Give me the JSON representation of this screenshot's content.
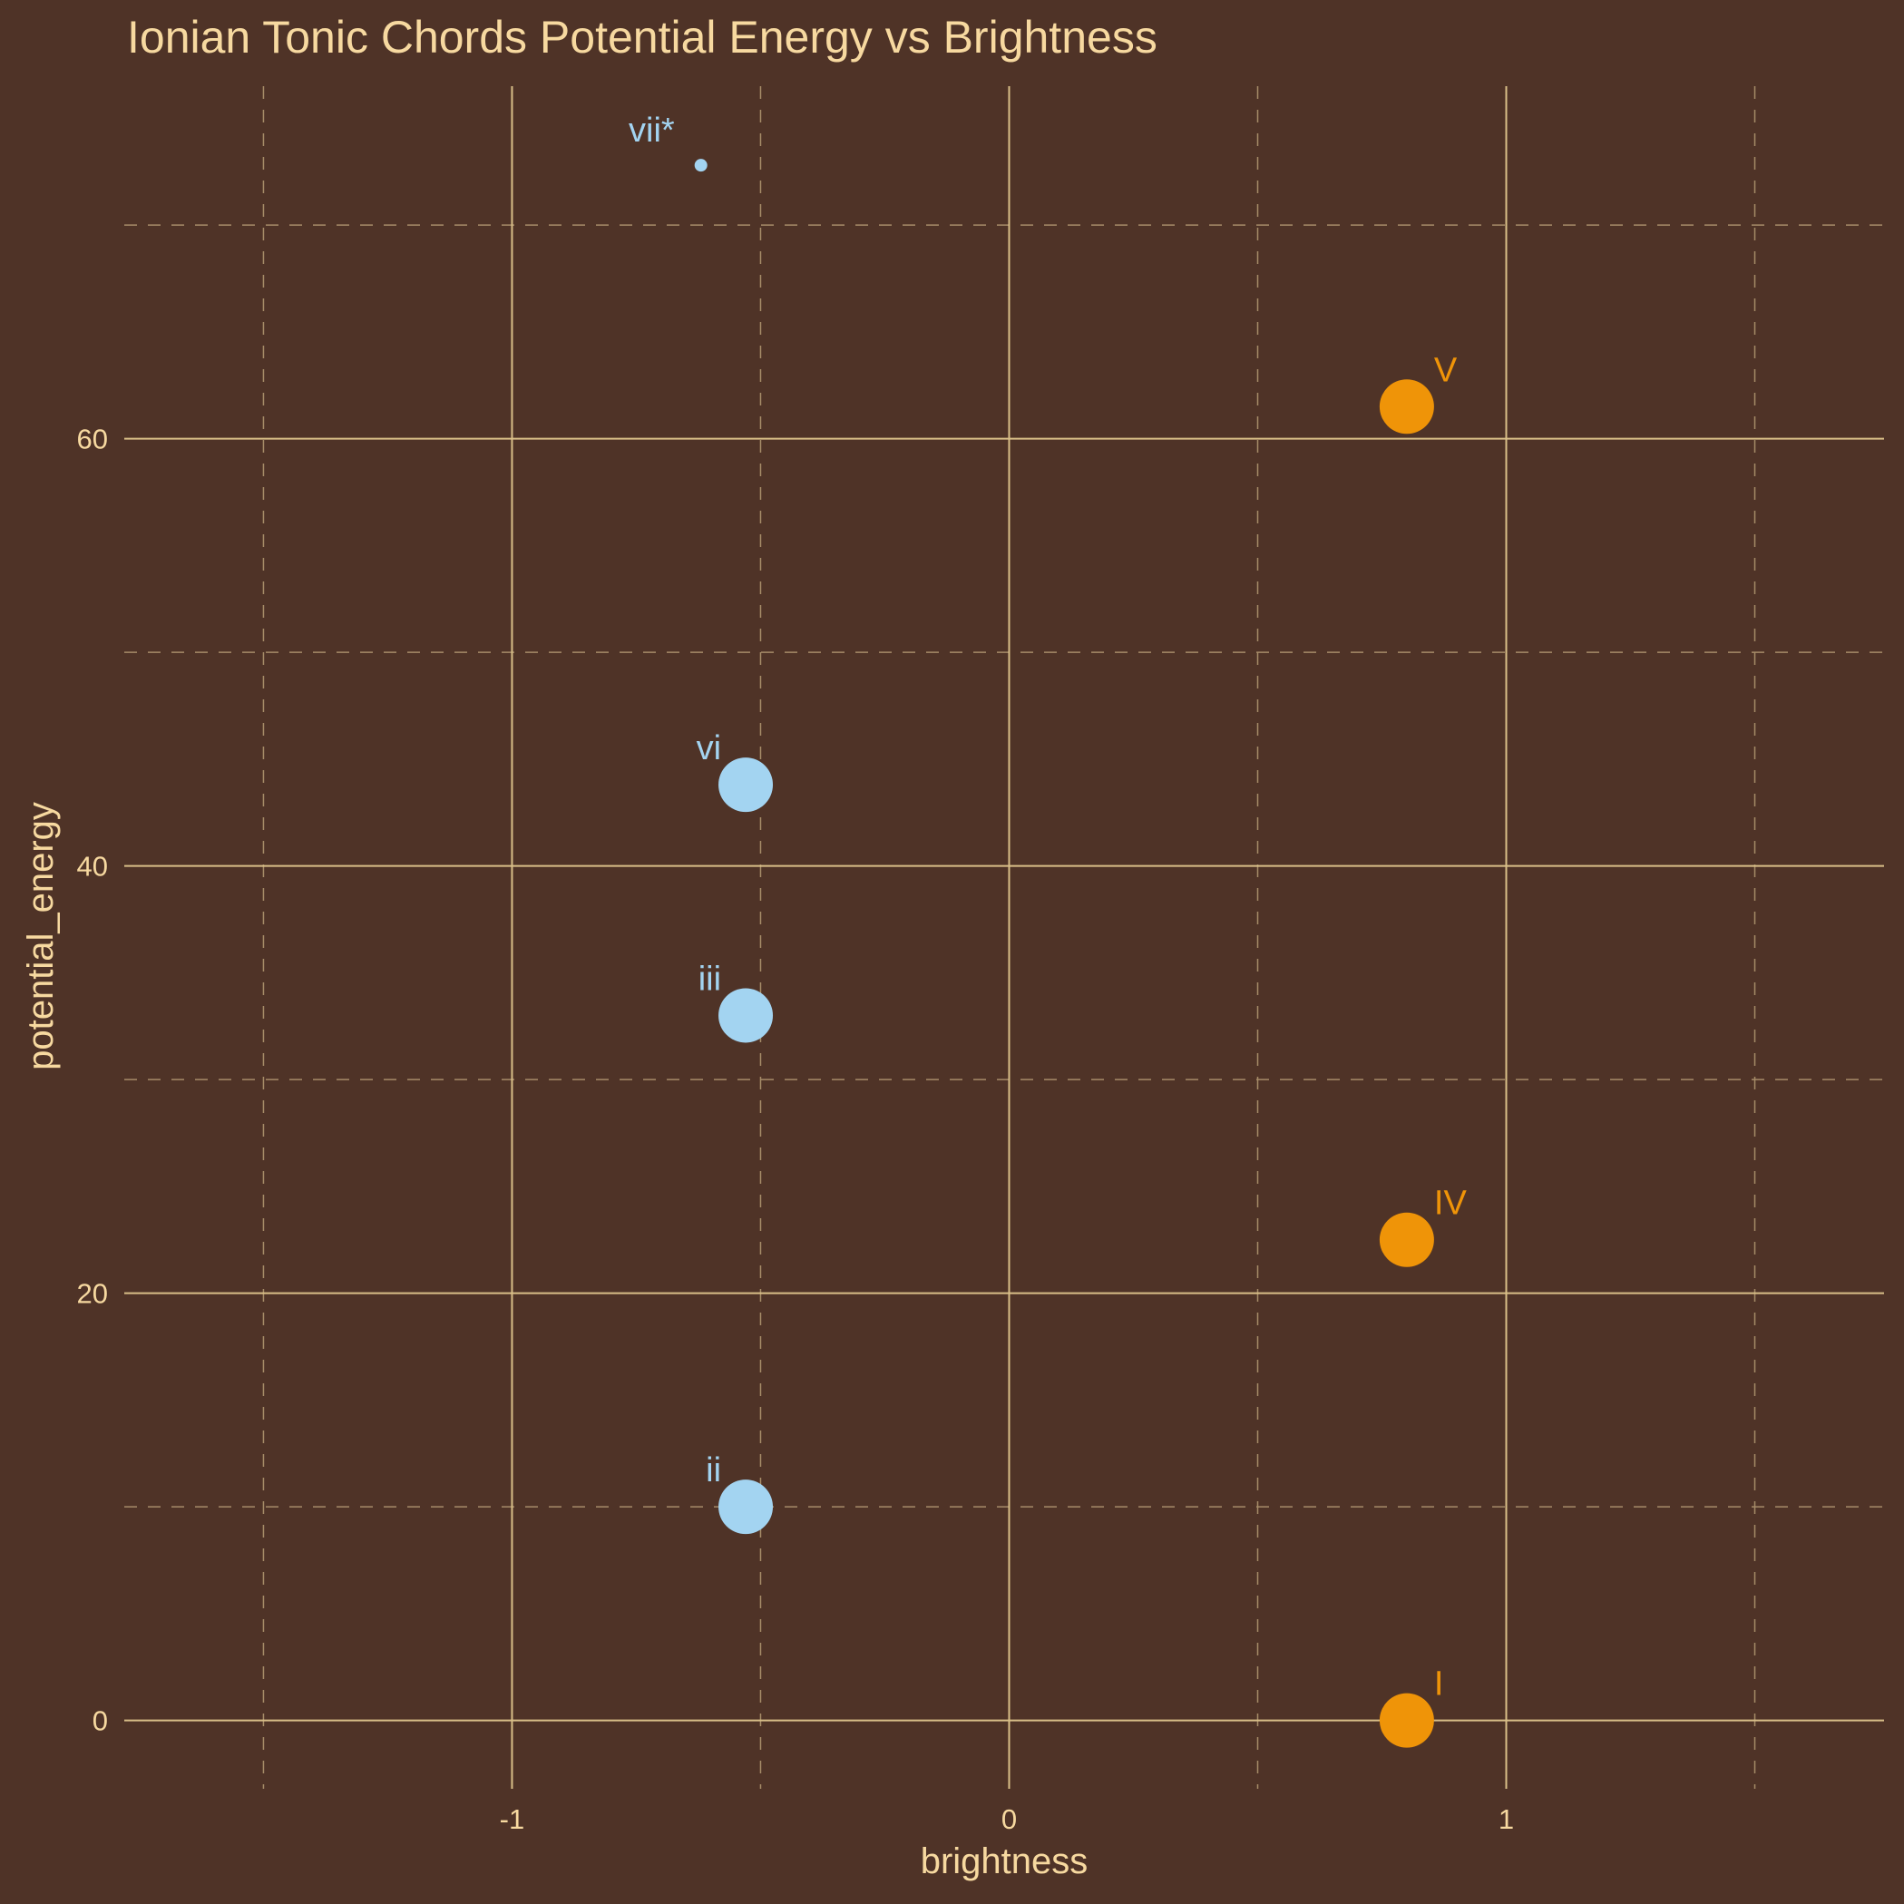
{
  "chart_data": {
    "type": "scatter",
    "title": "Ionian Tonic Chords Potential Energy vs Brightness",
    "xlabel": "brightness",
    "ylabel": "potential_energy",
    "xlim": [
      -1.78,
      1.76
    ],
    "ylim": [
      -3.2,
      76.5
    ],
    "x_major_ticks": [
      -1,
      0,
      1
    ],
    "x_minor_ticks": [
      -1.5,
      -0.5,
      0.5,
      1.5
    ],
    "y_major_ticks": [
      0,
      20,
      40,
      60
    ],
    "y_minor_ticks": [
      10,
      30,
      50,
      70
    ],
    "x_tick_labels": [
      "-1",
      "0",
      "1"
    ],
    "y_tick_labels": [
      "0",
      "20",
      "40",
      "60"
    ],
    "grid": true,
    "legend": "none",
    "points": [
      {
        "label": "I",
        "x": 0.8,
        "y": 0.0,
        "group": "major",
        "size": "large"
      },
      {
        "label": "ii",
        "x": -0.53,
        "y": 10.0,
        "group": "minor",
        "size": "large"
      },
      {
        "label": "iii",
        "x": -0.53,
        "y": 33.0,
        "group": "minor",
        "size": "large"
      },
      {
        "label": "IV",
        "x": 0.8,
        "y": 22.5,
        "group": "major",
        "size": "large"
      },
      {
        "label": "V",
        "x": 0.8,
        "y": 61.5,
        "group": "major",
        "size": "large"
      },
      {
        "label": "vi",
        "x": -0.53,
        "y": 43.8,
        "group": "minor",
        "size": "large"
      },
      {
        "label": "vii*",
        "x": -0.62,
        "y": 72.8,
        "group": "diminished",
        "size": "small"
      }
    ],
    "colors": {
      "background": "#4f3327",
      "text": "#f7d9a0",
      "grid_major": "#d9bf88",
      "grid_minor": "#a68c68",
      "major": "#ef9408",
      "minor": "#a3d4f1",
      "diminished": "#a3d4f1"
    }
  }
}
